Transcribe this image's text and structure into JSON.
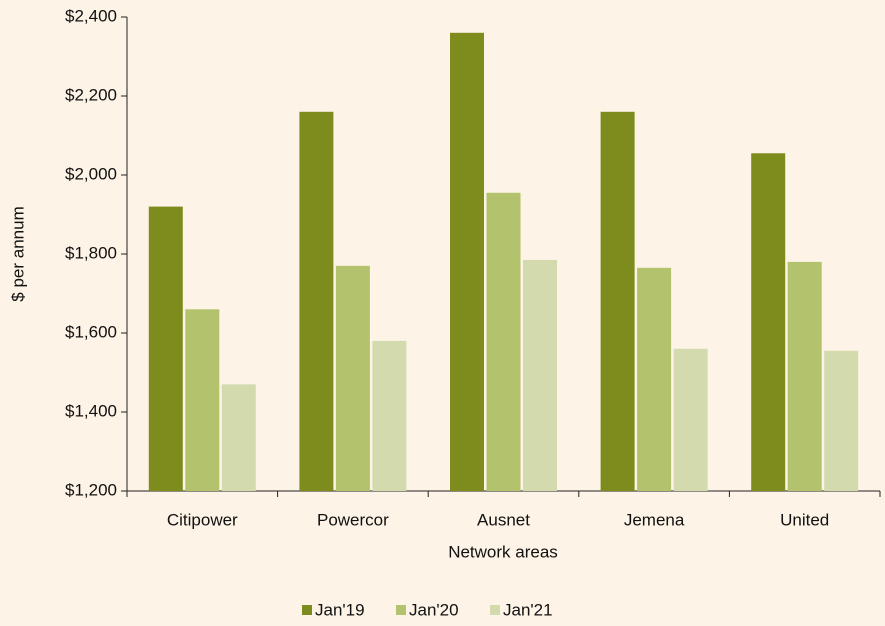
{
  "chart_data": {
    "type": "bar",
    "x_label": "Network areas",
    "y_label": "$ per annum",
    "categories": [
      "Citipower",
      "Powercor",
      "Ausnet",
      "Jemena",
      "United"
    ],
    "series": [
      {
        "name": "Jan'19",
        "color": "#7e8c1e",
        "values": [
          1920,
          2160,
          2360,
          2160,
          2055
        ]
      },
      {
        "name": "Jan'20",
        "color": "#b3c26c",
        "values": [
          1660,
          1770,
          1955,
          1765,
          1780
        ]
      },
      {
        "name": "Jan'21",
        "color": "#d3dbae",
        "values": [
          1470,
          1580,
          1785,
          1560,
          1555
        ]
      }
    ],
    "ylim": [
      1200,
      2400
    ],
    "yticks": [
      {
        "value": 1200,
        "label": "$1,200"
      },
      {
        "value": 1400,
        "label": "$1,400"
      },
      {
        "value": 1600,
        "label": "$1,600"
      },
      {
        "value": 1800,
        "label": "$1,800"
      },
      {
        "value": 2000,
        "label": "$2,000"
      },
      {
        "value": 2200,
        "label": "$2,200"
      },
      {
        "value": 2400,
        "label": "$2,400"
      }
    ],
    "grid": false,
    "legend": "bottom"
  }
}
